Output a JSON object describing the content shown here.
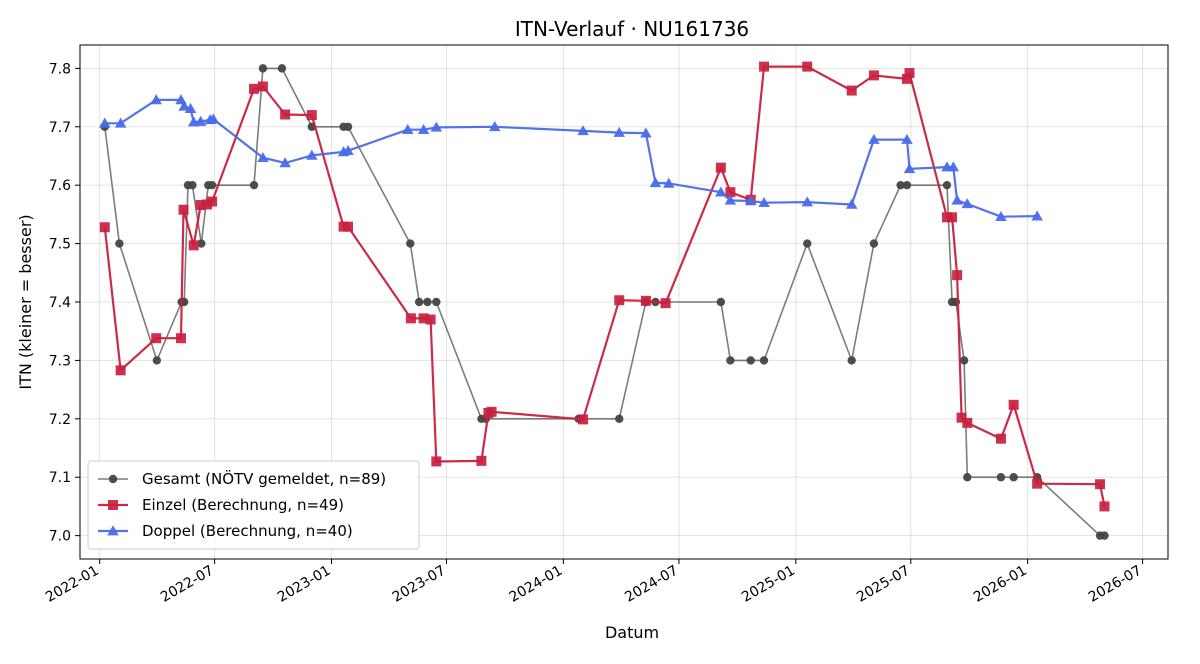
{
  "chart_data": {
    "type": "line",
    "title": "ITN-Verlauf · NU161736",
    "xlabel": "Datum",
    "ylabel": "ITN  (kleiner = besser)",
    "x_axis_type": "date",
    "xlim": [
      "2021-12-01",
      "2026-08-10"
    ],
    "ylim": [
      6.96,
      7.84
    ],
    "x_ticks": [
      "2022-01-01",
      "2022-07-01",
      "2023-01-01",
      "2023-07-01",
      "2024-01-01",
      "2024-07-01",
      "2025-01-01",
      "2025-07-01",
      "2026-01-01",
      "2026-07-01"
    ],
    "x_tick_labels": [
      "2022-01",
      "2022-07",
      "2023-01",
      "2023-07",
      "2024-01",
      "2024-07",
      "2025-01",
      "2025-07",
      "2026-01",
      "2026-07"
    ],
    "y_ticks": [
      7.0,
      7.1,
      7.2,
      7.3,
      7.4,
      7.5,
      7.6,
      7.7,
      7.8
    ],
    "y_tick_labels": [
      "7.0",
      "7.1",
      "7.2",
      "7.3",
      "7.4",
      "7.5",
      "7.6",
      "7.7",
      "7.8"
    ],
    "grid": true,
    "legend_position": "lower-left",
    "series": [
      {
        "name": "Gesamt (NÖTV gemeldet, n=89)",
        "color": "#444444",
        "marker": "circle",
        "points": [
          [
            "2022-01-09",
            7.7
          ],
          [
            "2022-02-01",
            7.5
          ],
          [
            "2022-04-01",
            7.3
          ],
          [
            "2022-05-10",
            7.4
          ],
          [
            "2022-05-14",
            7.4
          ],
          [
            "2022-05-20",
            7.6
          ],
          [
            "2022-05-27",
            7.6
          ],
          [
            "2022-06-10",
            7.5
          ],
          [
            "2022-06-21",
            7.6
          ],
          [
            "2022-06-27",
            7.6
          ],
          [
            "2022-09-01",
            7.6
          ],
          [
            "2022-09-15",
            7.8
          ],
          [
            "2022-10-15",
            7.8
          ],
          [
            "2022-12-01",
            7.7
          ],
          [
            "2023-01-20",
            7.7
          ],
          [
            "2023-01-27",
            7.7
          ],
          [
            "2023-05-05",
            7.5
          ],
          [
            "2023-05-19",
            7.4
          ],
          [
            "2023-06-01",
            7.4
          ],
          [
            "2023-06-15",
            7.4
          ],
          [
            "2023-08-25",
            7.2
          ],
          [
            "2023-09-01",
            7.2
          ],
          [
            "2024-01-25",
            7.2
          ],
          [
            "2024-03-29",
            7.2
          ],
          [
            "2024-05-10",
            7.4
          ],
          [
            "2024-05-25",
            7.4
          ],
          [
            "2024-09-05",
            7.4
          ],
          [
            "2024-09-20",
            7.3
          ],
          [
            "2024-10-22",
            7.3
          ],
          [
            "2024-11-12",
            7.3
          ],
          [
            "2025-01-19",
            7.5
          ],
          [
            "2025-03-30",
            7.3
          ],
          [
            "2025-05-04",
            7.5
          ],
          [
            "2025-06-15",
            7.6
          ],
          [
            "2025-06-25",
            7.6
          ],
          [
            "2025-08-27",
            7.6
          ],
          [
            "2025-09-04",
            7.4
          ],
          [
            "2025-09-10",
            7.4
          ],
          [
            "2025-09-23",
            7.3
          ],
          [
            "2025-09-28",
            7.1
          ],
          [
            "2025-11-20",
            7.1
          ],
          [
            "2025-12-10",
            7.1
          ],
          [
            "2026-01-16",
            7.1
          ],
          [
            "2026-04-25",
            7.0
          ],
          [
            "2026-05-02",
            7.0
          ]
        ]
      },
      {
        "name": "Einzel (Berechnung, n=49)",
        "color": "#c8203e",
        "marker": "square",
        "points": [
          [
            "2022-01-09",
            7.528
          ],
          [
            "2022-02-03",
            7.283
          ],
          [
            "2022-03-31",
            7.338
          ],
          [
            "2022-05-09",
            7.338
          ],
          [
            "2022-05-13",
            7.558
          ],
          [
            "2022-05-29",
            7.497
          ],
          [
            "2022-06-09",
            7.566
          ],
          [
            "2022-06-19",
            7.567
          ],
          [
            "2022-06-27",
            7.572
          ],
          [
            "2022-09-01",
            7.765
          ],
          [
            "2022-09-15",
            7.769
          ],
          [
            "2022-10-20",
            7.721
          ],
          [
            "2022-12-01",
            7.72
          ],
          [
            "2023-01-20",
            7.529
          ],
          [
            "2023-01-27",
            7.529
          ],
          [
            "2023-05-06",
            7.372
          ],
          [
            "2023-05-26",
            7.372
          ],
          [
            "2023-06-06",
            7.37
          ],
          [
            "2023-06-15",
            7.127
          ],
          [
            "2023-08-25",
            7.128
          ],
          [
            "2023-09-05",
            7.21
          ],
          [
            "2023-09-10",
            7.212
          ],
          [
            "2024-02-01",
            7.199
          ],
          [
            "2024-03-29",
            7.403
          ],
          [
            "2024-05-10",
            7.402
          ],
          [
            "2024-06-10",
            7.398
          ],
          [
            "2024-09-05",
            7.63
          ],
          [
            "2024-09-20",
            7.588
          ],
          [
            "2024-10-22",
            7.575
          ],
          [
            "2024-11-12",
            7.803
          ],
          [
            "2025-01-19",
            7.803
          ],
          [
            "2025-03-30",
            7.762
          ],
          [
            "2025-05-04",
            7.788
          ],
          [
            "2025-06-25",
            7.782
          ],
          [
            "2025-06-29",
            7.792
          ],
          [
            "2025-08-27",
            7.545
          ],
          [
            "2025-09-04",
            7.545
          ],
          [
            "2025-09-12",
            7.446
          ],
          [
            "2025-09-19",
            7.202
          ],
          [
            "2025-09-28",
            7.193
          ],
          [
            "2025-11-20",
            7.166
          ],
          [
            "2025-12-10",
            7.224
          ],
          [
            "2026-01-16",
            7.089
          ],
          [
            "2026-04-25",
            7.088
          ],
          [
            "2026-05-02",
            7.05
          ]
        ]
      },
      {
        "name": "Doppel (Berechnung, n=40)",
        "color": "#4a6bea",
        "marker": "triangle",
        "points": [
          [
            "2022-01-09",
            7.706
          ],
          [
            "2022-02-03",
            7.706
          ],
          [
            "2022-03-31",
            7.746
          ],
          [
            "2022-05-09",
            7.746
          ],
          [
            "2022-05-14",
            7.735
          ],
          [
            "2022-05-24",
            7.731
          ],
          [
            "2022-05-29",
            7.708
          ],
          [
            "2022-06-09",
            7.709
          ],
          [
            "2022-06-24",
            7.712
          ],
          [
            "2022-06-29",
            7.713
          ],
          [
            "2022-09-15",
            7.647
          ],
          [
            "2022-10-20",
            7.638
          ],
          [
            "2022-12-01",
            7.651
          ],
          [
            "2023-01-20",
            7.657
          ],
          [
            "2023-01-27",
            7.659
          ],
          [
            "2023-05-01",
            7.695
          ],
          [
            "2023-05-26",
            7.695
          ],
          [
            "2023-06-15",
            7.699
          ],
          [
            "2023-09-15",
            7.7
          ],
          [
            "2024-02-01",
            7.693
          ],
          [
            "2024-03-29",
            7.69
          ],
          [
            "2024-05-10",
            7.689
          ],
          [
            "2024-05-25",
            7.604
          ],
          [
            "2024-06-15",
            7.603
          ],
          [
            "2024-09-05",
            7.588
          ],
          [
            "2024-09-20",
            7.574
          ],
          [
            "2024-10-22",
            7.573
          ],
          [
            "2024-11-12",
            7.57
          ],
          [
            "2025-01-19",
            7.571
          ],
          [
            "2025-03-30",
            7.567
          ],
          [
            "2025-05-04",
            7.678
          ],
          [
            "2025-06-25",
            7.678
          ],
          [
            "2025-06-29",
            7.628
          ],
          [
            "2025-08-27",
            7.631
          ],
          [
            "2025-09-06",
            7.631
          ],
          [
            "2025-09-12",
            7.574
          ],
          [
            "2025-09-28",
            7.568
          ],
          [
            "2025-11-20",
            7.546
          ],
          [
            "2026-01-16",
            7.547
          ]
        ]
      }
    ]
  }
}
